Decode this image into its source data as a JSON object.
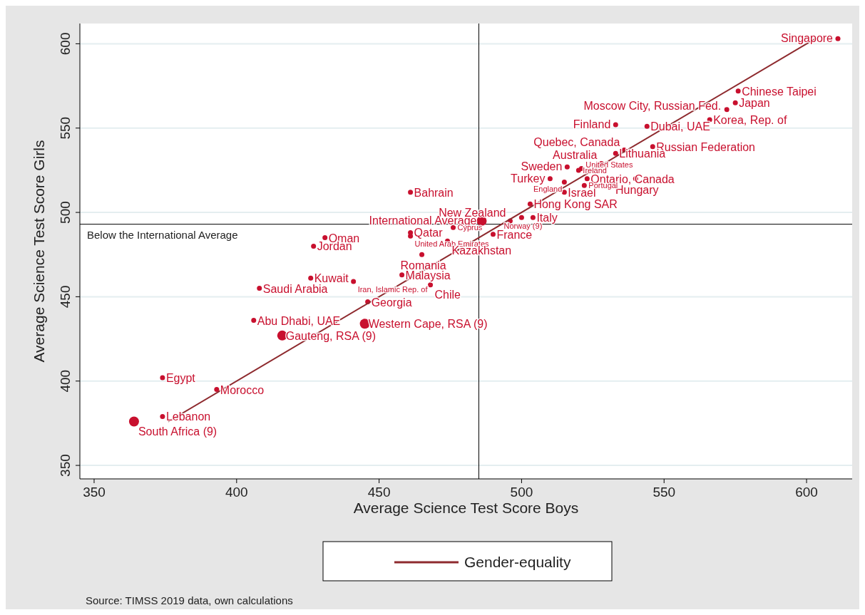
{
  "chart_data": {
    "type": "bubble",
    "xlabel": "Average Science Test Score Boys",
    "ylabel": "Average Science Test Score Girls",
    "xlim": [
      345,
      616
    ],
    "ylim": [
      342,
      612
    ],
    "xticks": [
      350,
      400,
      450,
      500,
      550,
      600
    ],
    "yticks": [
      350,
      400,
      450,
      500,
      550,
      600
    ],
    "grid": "y",
    "legend": "bottom",
    "series": [
      {
        "color": "#c8102e",
        "x": [
          611,
          576,
          575,
          572,
          566,
          533,
          544,
          546,
          536,
          533,
          528,
          516,
          521,
          520,
          510,
          515,
          515,
          523,
          540,
          522,
          503,
          504,
          500,
          496,
          486,
          476,
          490,
          461,
          461,
          461,
          474,
          465,
          458,
          468,
          441,
          426,
          408,
          446,
          431,
          427,
          406,
          445,
          416,
          374,
          393,
          374,
          364
        ],
        "values": [
          603,
          572,
          565,
          561,
          555,
          552,
          551,
          539,
          537,
          535,
          529,
          527,
          526,
          525,
          520,
          518,
          512,
          520,
          520,
          516,
          505,
          497,
          497,
          495,
          495,
          491,
          487,
          512,
          488,
          486,
          483,
          475,
          463,
          457,
          459,
          461,
          455,
          447,
          485,
          480,
          436,
          434,
          427,
          402,
          395,
          379,
          376
        ],
        "sizes": [
          0.25,
          0.25,
          0.25,
          0.25,
          0.25,
          0.25,
          0.25,
          0.25,
          0.25,
          0.25,
          0.25,
          0.25,
          0.25,
          0.25,
          0.25,
          0.25,
          0.25,
          0.25,
          0.25,
          0.25,
          0.25,
          0.25,
          0.25,
          0.25,
          1,
          0.25,
          0.25,
          0.25,
          0.25,
          0.25,
          0.25,
          0.25,
          0.25,
          0.25,
          0.25,
          0.25,
          0.25,
          0.25,
          0.25,
          0.25,
          0.25,
          1,
          1,
          0.25,
          0.25,
          0.25,
          1
        ]
      },
      {
        "type": "line",
        "name": "Gender-equality",
        "color": "#8e2a2e",
        "x": [
          376,
          603
        ],
        "values": [
          376,
          603
        ]
      }
    ],
    "ref_lines": [
      {
        "axis": "y",
        "value": 493,
        "label": "Below the International Average",
        "color": "#000000"
      },
      {
        "axis": "x",
        "value": 485,
        "color": "#000000"
      }
    ],
    "annotations": [
      {
        "text": "Singapore",
        "x": 611,
        "y": 603
      },
      {
        "text": "Chinese Taipei",
        "x": 576,
        "y": 572
      },
      {
        "text": "Japan",
        "x": 575,
        "y": 565
      },
      {
        "text": "Moscow City, Russian Fed.",
        "x": 572,
        "y": 561
      },
      {
        "text": "Korea, Rep. of",
        "x": 566,
        "y": 555
      },
      {
        "text": "Finland",
        "x": 533,
        "y": 552
      },
      {
        "text": "Dubai, UAE",
        "x": 544,
        "y": 551
      },
      {
        "text": "Russian Federation",
        "x": 546,
        "y": 539
      },
      {
        "text": "Quebec, Canada",
        "x": 536,
        "y": 537
      },
      {
        "text": "Lithuania",
        "x": 533,
        "y": 535
      },
      {
        "text": "Australia",
        "x": 528,
        "y": 529
      },
      {
        "text": "Sweden",
        "x": 516,
        "y": 527
      },
      {
        "text": "United States",
        "x": 521,
        "y": 526
      },
      {
        "text": "Ireland",
        "x": 520,
        "y": 525
      },
      {
        "text": "Turkey",
        "x": 510,
        "y": 520
      },
      {
        "text": "England",
        "x": 515,
        "y": 518
      },
      {
        "text": "Israel",
        "x": 515,
        "y": 512
      },
      {
        "text": "Ontario, Canada",
        "x": 523,
        "y": 520
      },
      {
        "text": "Hungary",
        "x": 540,
        "y": 520
      },
      {
        "text": "Portugal",
        "x": 522,
        "y": 516
      },
      {
        "text": "Hong Kong SAR",
        "x": 503,
        "y": 505
      },
      {
        "text": "Italy",
        "x": 504,
        "y": 497
      },
      {
        "text": "Norway (9)",
        "x": 500,
        "y": 497
      },
      {
        "text": "New Zealand",
        "x": 496,
        "y": 495
      },
      {
        "text": "International Average",
        "x": 486,
        "y": 495
      },
      {
        "text": "Cyprus",
        "x": 476,
        "y": 491
      },
      {
        "text": "France",
        "x": 490,
        "y": 487
      },
      {
        "text": "Bahrain",
        "x": 461,
        "y": 512
      },
      {
        "text": "Qatar",
        "x": 461,
        "y": 488
      },
      {
        "text": "United Arab Emirates",
        "x": 461,
        "y": 486
      },
      {
        "text": "Kazakhstan",
        "x": 474,
        "y": 483
      },
      {
        "text": "Romania",
        "x": 465,
        "y": 475
      },
      {
        "text": "Malaysia",
        "x": 458,
        "y": 463
      },
      {
        "text": "Chile",
        "x": 468,
        "y": 457
      },
      {
        "text": "Iran, Islamic Rep. of",
        "x": 441,
        "y": 459
      },
      {
        "text": "Kuwait",
        "x": 426,
        "y": 461
      },
      {
        "text": "Saudi Arabia",
        "x": 408,
        "y": 455
      },
      {
        "text": "Georgia",
        "x": 446,
        "y": 447
      },
      {
        "text": "Oman",
        "x": 431,
        "y": 485
      },
      {
        "text": "Jordan",
        "x": 427,
        "y": 480
      },
      {
        "text": "Abu Dhabi, UAE",
        "x": 406,
        "y": 436
      },
      {
        "text": "Western Cape, RSA (9)",
        "x": 445,
        "y": 434
      },
      {
        "text": "Gauteng, RSA (9)",
        "x": 416,
        "y": 427
      },
      {
        "text": "Egypt",
        "x": 374,
        "y": 402
      },
      {
        "text": "Morocco",
        "x": 393,
        "y": 395
      },
      {
        "text": "Lebanon",
        "x": 374,
        "y": 379
      },
      {
        "text": "South Africa (9)",
        "x": 364,
        "y": 376
      },
      "Source: TIMSS 2019 data, own calculations"
    ]
  }
}
